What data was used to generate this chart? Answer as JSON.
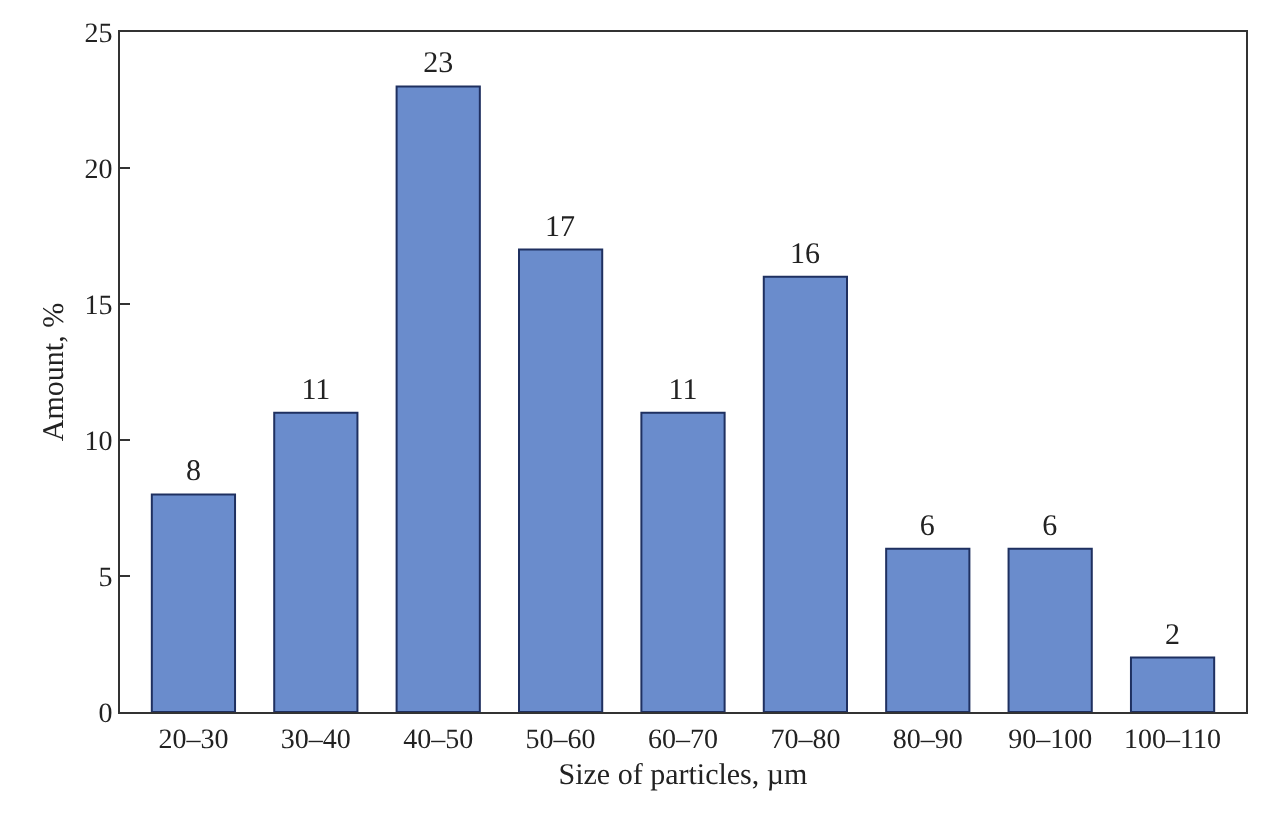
{
  "chart_data": {
    "type": "bar",
    "xlabel": "Size of particles, µm",
    "ylabel": "Amount, %",
    "categories": [
      "20–30",
      "30–40",
      "40–50",
      "50–60",
      "60–70",
      "70–80",
      "80–90",
      "90–100",
      "100–110"
    ],
    "values": [
      8,
      11,
      23,
      17,
      11,
      16,
      6,
      6,
      2
    ],
    "color": "#6a8ccc",
    "ylim": [
      0,
      25
    ],
    "yticks": [
      0,
      5,
      10,
      15,
      20,
      25
    ],
    "data_labels": true
  }
}
